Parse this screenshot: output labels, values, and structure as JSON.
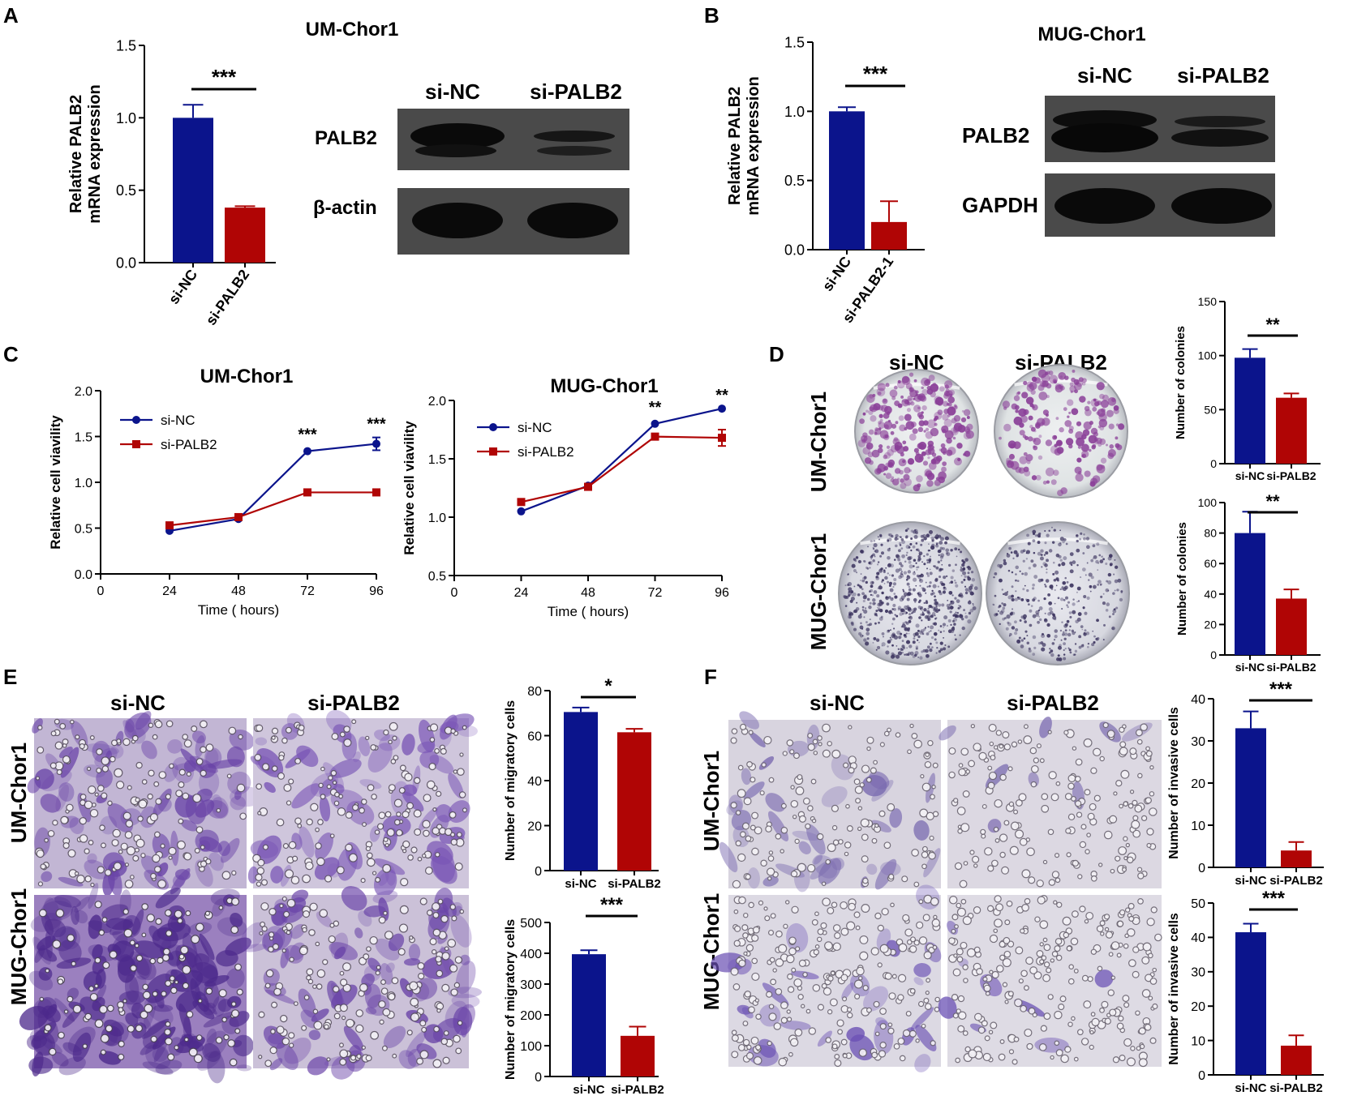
{
  "colors": {
    "navy": "#0b148c",
    "red": "#b00505",
    "black": "#000000",
    "blot_bg": "#3a3a3a",
    "plate_bg": "#e2e3e6",
    "micro_bg_e": "#c9c0d6",
    "micro_bg_f": "#d9d6e0"
  },
  "panel_letters": {
    "a": "A",
    "b": "B",
    "c": "C",
    "d": "D",
    "e": "E",
    "f": "F"
  },
  "panel_a": {
    "title": "UM-Chor1",
    "ylabel1": "Relative PALB2",
    "ylabel2": "mRNA expression",
    "yticks": [
      "0.0",
      "0.5",
      "1.0",
      "1.5"
    ],
    "categories": [
      "si-NC",
      "si-PALB2"
    ],
    "sig": "***",
    "blot_headers": [
      "si-NC",
      "si-PALB2"
    ],
    "blot_rows": [
      "PALB2",
      "β-actin"
    ]
  },
  "panel_b": {
    "title": "MUG-Chor1",
    "ylabel1": "Relative PALB2",
    "ylabel2": "mRNA expression",
    "yticks": [
      "0.0",
      "0.5",
      "1.0",
      "1.5"
    ],
    "categories": [
      "si-NC",
      "si-PALB2-1"
    ],
    "sig": "***",
    "blot_headers": [
      "si-NC",
      "si-PALB2"
    ],
    "blot_rows": [
      "PALB2",
      "GAPDH"
    ]
  },
  "panel_c": {
    "left": {
      "title": "UM-Chor1",
      "ylabel": "Relative cell viavility",
      "xlabel": "Time ( hours)",
      "yticks": [
        "0.0",
        "0.5",
        "1.0",
        "1.5",
        "2.0"
      ],
      "xticks": [
        "0",
        "24",
        "48",
        "72",
        "96"
      ],
      "legend": [
        "si-NC",
        "si-PALB2"
      ],
      "sig72": "***",
      "sig96": "***"
    },
    "right": {
      "title": "MUG-Chor1",
      "ylabel": "Relative cell viavility",
      "xlabel": "Time ( hours)",
      "yticks": [
        "0.5",
        "1.0",
        "1.5",
        "2.0"
      ],
      "xticks": [
        "0",
        "24",
        "48",
        "72",
        "96"
      ],
      "legend": [
        "si-NC",
        "si-PALB2"
      ],
      "sig72": "**",
      "sig96": "**"
    }
  },
  "panel_d": {
    "col_headers": [
      "si-NC",
      "si-PALB2"
    ],
    "row_labels": [
      "UM-Chor1",
      "MUG-Chor1"
    ],
    "top": {
      "ylabel": "Number of colonies",
      "yticks": [
        "0",
        "50",
        "100",
        "150"
      ],
      "categories": [
        "si-NC",
        "si-PALB2"
      ],
      "sig": "**"
    },
    "bottom": {
      "ylabel": "Number of colonies",
      "yticks": [
        "0",
        "20",
        "40",
        "60",
        "80",
        "100"
      ],
      "categories": [
        "si-NC",
        "si-PALB2"
      ],
      "sig": "**"
    }
  },
  "panel_e": {
    "col_headers": [
      "si-NC",
      "si-PALB2"
    ],
    "row_labels": [
      "UM-Chor1",
      "MUG-Chor1"
    ],
    "top": {
      "ylabel": "Number of migratory cells",
      "yticks": [
        "0",
        "20",
        "40",
        "60",
        "80"
      ],
      "categories": [
        "si-NC",
        "si-PALB2"
      ],
      "sig": "*"
    },
    "bottom": {
      "ylabel": "Number of migratory cells",
      "yticks": [
        "0",
        "100",
        "200",
        "300",
        "400",
        "500"
      ],
      "categories": [
        "si-NC",
        "si-PALB2"
      ],
      "sig": "***"
    }
  },
  "panel_f": {
    "col_headers": [
      "si-NC",
      "si-PALB2"
    ],
    "row_labels": [
      "UM-Chor1",
      "MUG-Chor1"
    ],
    "top": {
      "ylabel": "Number of invasive cells",
      "yticks": [
        "0",
        "10",
        "20",
        "30",
        "40"
      ],
      "categories": [
        "si-NC",
        "si-PALB2"
      ],
      "sig": "***"
    },
    "bottom": {
      "ylabel": "Number of invasive cells",
      "yticks": [
        "0",
        "10",
        "20",
        "30",
        "40",
        "50"
      ],
      "categories": [
        "si-NC",
        "si-PALB2"
      ],
      "sig": "***"
    }
  },
  "chart_data": [
    {
      "id": "A-bar",
      "type": "bar",
      "categories": [
        "si-NC",
        "si-PALB2"
      ],
      "values": [
        1.0,
        0.38
      ],
      "errors": [
        0.09,
        0.01
      ],
      "ylim": [
        0,
        1.5
      ],
      "ylabel": "Relative PALB2 mRNA expression",
      "title": "UM-Chor1"
    },
    {
      "id": "B-bar",
      "type": "bar",
      "categories": [
        "si-NC",
        "si-PALB2-1"
      ],
      "values": [
        1.0,
        0.2
      ],
      "errors": [
        0.03,
        0.15
      ],
      "ylim": [
        0,
        1.5
      ],
      "ylabel": "Relative PALB2 mRNA expression"
    },
    {
      "id": "C-left",
      "type": "line",
      "title": "UM-Chor1",
      "x": [
        24,
        48,
        72,
        96
      ],
      "xlim": [
        0,
        96
      ],
      "ylim": [
        0,
        2.0
      ],
      "xlabel": "Time ( hours)",
      "ylabel": "Relative cell viavility",
      "series": [
        {
          "name": "si-NC",
          "values": [
            0.47,
            0.6,
            1.34,
            1.42
          ],
          "errors": [
            0,
            0,
            0,
            0.07
          ]
        },
        {
          "name": "si-PALB2",
          "values": [
            0.53,
            0.62,
            0.89,
            0.89
          ],
          "errors": [
            0,
            0,
            0,
            0
          ]
        }
      ]
    },
    {
      "id": "C-right",
      "type": "line",
      "title": "MUG-Chor1",
      "x": [
        24,
        48,
        72,
        96
      ],
      "xlim": [
        0,
        96
      ],
      "ylim": [
        0.5,
        2.0
      ],
      "xlabel": "Time ( hours)",
      "ylabel": "Relative cell viavility",
      "series": [
        {
          "name": "si-NC",
          "values": [
            1.05,
            1.27,
            1.8,
            1.93
          ],
          "errors": [
            0,
            0,
            0,
            0
          ]
        },
        {
          "name": "si-PALB2",
          "values": [
            1.13,
            1.26,
            1.69,
            1.68
          ],
          "errors": [
            0,
            0,
            0,
            0.07
          ]
        }
      ]
    },
    {
      "id": "D-top",
      "type": "bar",
      "categories": [
        "si-NC",
        "si-PALB2"
      ],
      "values": [
        98,
        61
      ],
      "errors": [
        8,
        4
      ],
      "ylim": [
        0,
        150
      ],
      "ylabel": "Number of colonies"
    },
    {
      "id": "D-bottom",
      "type": "bar",
      "categories": [
        "si-NC",
        "si-PALB2"
      ],
      "values": [
        80,
        37
      ],
      "errors": [
        14,
        6
      ],
      "ylim": [
        0,
        100
      ],
      "ylabel": "Number of colonies"
    },
    {
      "id": "E-top",
      "type": "bar",
      "categories": [
        "si-NC",
        "si-PALB2"
      ],
      "values": [
        70.5,
        61.5
      ],
      "errors": [
        2,
        1.5
      ],
      "ylim": [
        0,
        80
      ],
      "ylabel": "Number of migratory cells"
    },
    {
      "id": "E-bottom",
      "type": "bar",
      "categories": [
        "si-NC",
        "si-PALB2"
      ],
      "values": [
        397,
        132
      ],
      "errors": [
        13,
        30
      ],
      "ylim": [
        0,
        500
      ],
      "ylabel": "Number of migratory cells"
    },
    {
      "id": "F-top",
      "type": "bar",
      "categories": [
        "si-NC",
        "si-PALB2"
      ],
      "values": [
        33,
        4
      ],
      "errors": [
        4,
        2
      ],
      "ylim": [
        0,
        40
      ],
      "ylabel": "Number of invasive cells"
    },
    {
      "id": "F-bottom",
      "type": "bar",
      "categories": [
        "si-NC",
        "si-PALB2"
      ],
      "values": [
        41.5,
        8.5
      ],
      "errors": [
        2.5,
        3
      ],
      "ylim": [
        0,
        50
      ],
      "ylabel": "Number of invasive cells"
    }
  ]
}
